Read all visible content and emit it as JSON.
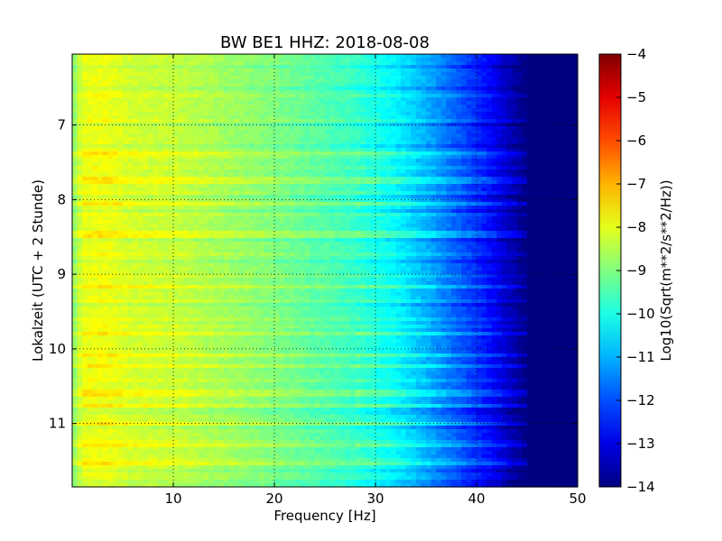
{
  "chart_data": {
    "type": "heatmap",
    "title": "BW BE1 HHZ: 2018-08-08",
    "xlabel": "Frequency [Hz]",
    "ylabel": "Lokalzeit (UTC + 2 Stunde)",
    "xlim": [
      0,
      50
    ],
    "ylim": [
      6.05,
      11.85
    ],
    "y_inverted": true,
    "x_ticks": [
      10,
      20,
      30,
      40,
      50
    ],
    "x_tick_labels": [
      "10",
      "20",
      "30",
      "40",
      "50"
    ],
    "y_ticks": [
      7,
      8,
      9,
      10,
      11
    ],
    "y_tick_labels": [
      "7",
      "8",
      "9",
      "10",
      "11"
    ],
    "grid": true,
    "grid_style": "dotted",
    "colormap": "jet",
    "colorbar": {
      "label": "Log10(Sqrt(m**2/s**2/Hz))",
      "range": [
        -14,
        -4
      ],
      "ticks": [
        -4,
        -5,
        -6,
        -7,
        -8,
        -9,
        -10,
        -11,
        -12,
        -13,
        -14
      ],
      "tick_labels": [
        "−4",
        "−5",
        "−6",
        "−7",
        "−8",
        "−9",
        "−10",
        "−11",
        "−12",
        "−13",
        "−14"
      ]
    },
    "profile": {
      "frequency_hz": [
        0,
        1,
        3,
        6,
        10,
        20,
        28,
        32,
        35,
        38,
        41,
        43,
        45,
        50
      ],
      "log_amplitude": [
        -9.0,
        -8.0,
        -7.9,
        -8.2,
        -8.3,
        -9.0,
        -9.7,
        -10.3,
        -11.0,
        -11.8,
        -12.6,
        -13.3,
        -14.0,
        -14.0
      ]
    },
    "noise_floor_level": -14.0
  }
}
